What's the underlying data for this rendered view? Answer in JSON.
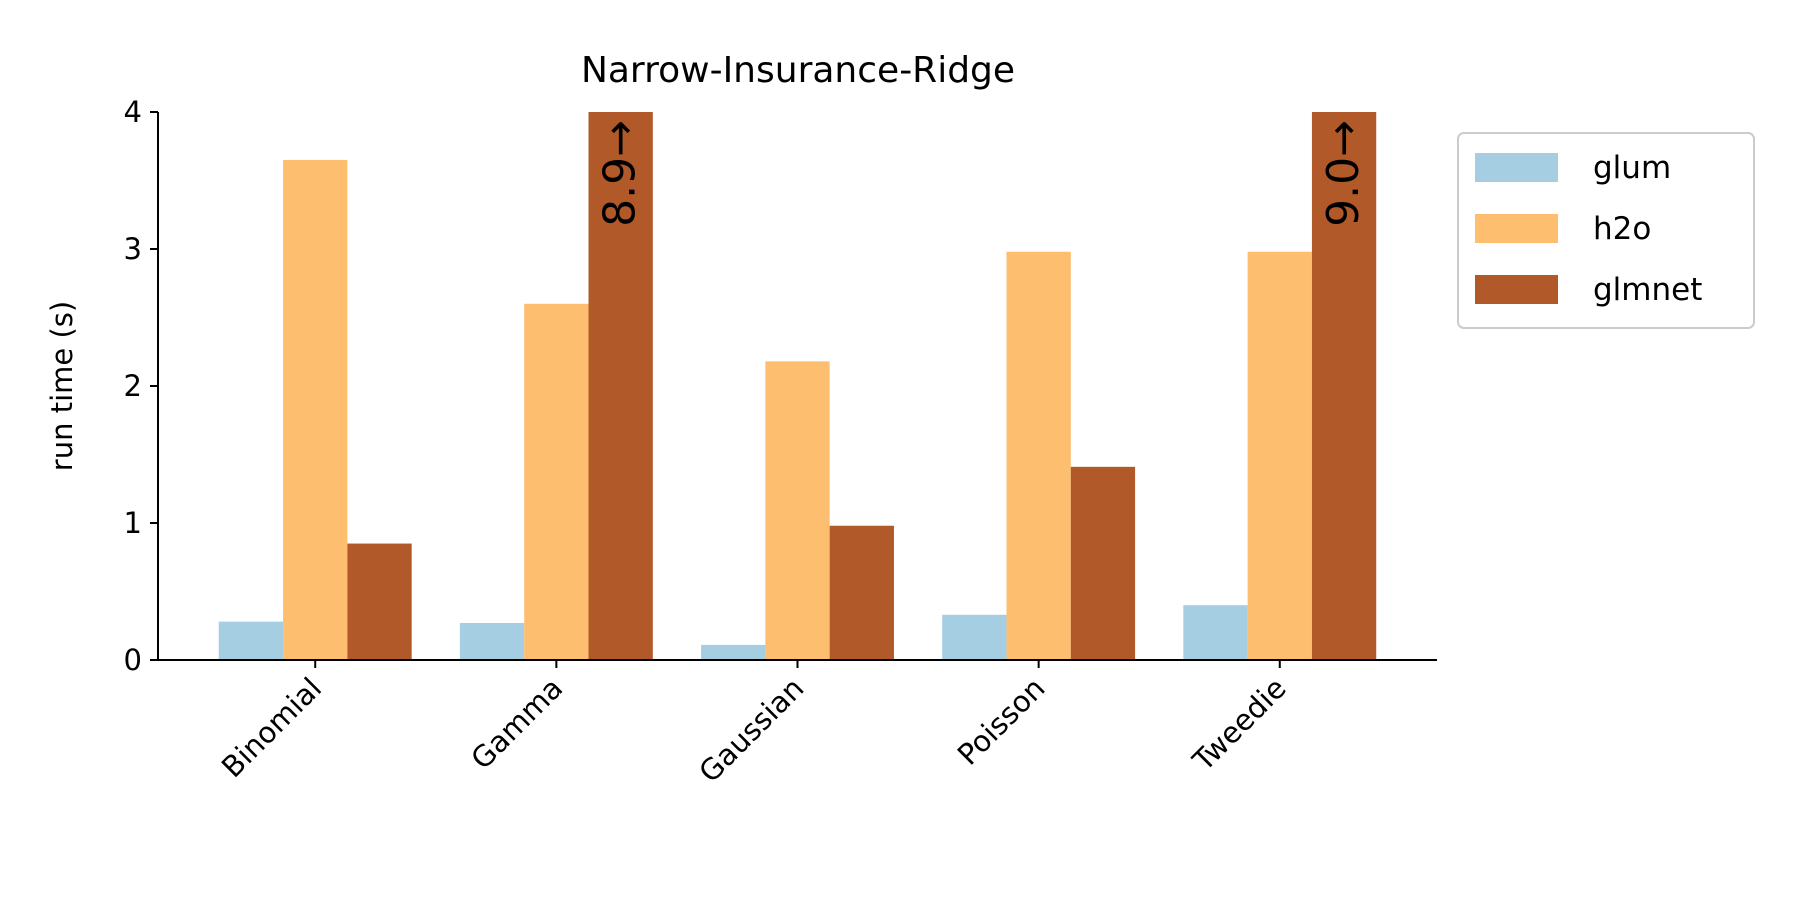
{
  "chart_data": {
    "type": "bar",
    "title": "Narrow-Insurance-Ridge",
    "y_label": "run time (s)",
    "categories": [
      "Binomial",
      "Gamma",
      "Gaussian",
      "Poisson",
      "Tweedie"
    ],
    "series": [
      {
        "name": "glum",
        "color": "#a6cee3",
        "values": [
          0.28,
          0.27,
          0.11,
          0.33,
          0.4
        ]
      },
      {
        "name": "h2o",
        "color": "#fdbf6f",
        "values": [
          3.65,
          2.6,
          2.18,
          2.98,
          2.98
        ]
      },
      {
        "name": "glmnet",
        "color": "#b15928",
        "values": [
          0.85,
          8.9,
          0.98,
          1.41,
          9.0
        ],
        "value_labels": [
          null,
          "8.9→",
          null,
          null,
          "9.0→"
        ]
      }
    ],
    "ylim": [
      0,
      4
    ],
    "yticks": [
      0,
      1,
      2,
      3,
      4
    ],
    "grid": false,
    "legend": "outside right"
  }
}
